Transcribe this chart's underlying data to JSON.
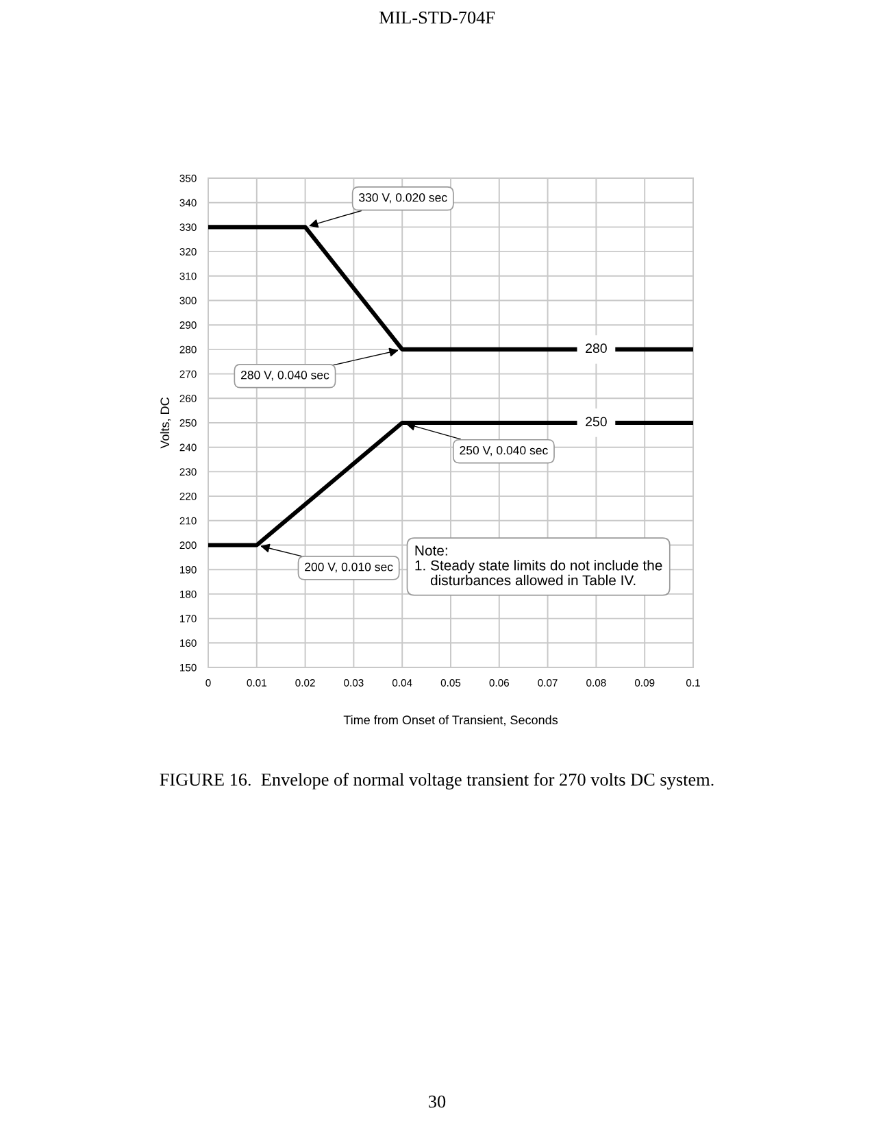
{
  "chart_data": {
    "type": "line",
    "title": "MIL-STD-704F",
    "xlabel": "Time from Onset of Transient, Seconds",
    "ylabel": "Volts, DC",
    "series": [
      {
        "color": "#000000",
        "x": [
          0,
          0.02,
          0.04,
          0.1
        ],
        "values": [
          330,
          330,
          280,
          280
        ]
      },
      {
        "color": "#000000",
        "x": [
          0,
          0.01,
          0.04,
          0.1
        ],
        "values": [
          200,
          200,
          250,
          250
        ]
      }
    ],
    "xlim": [
      0,
      0.1
    ],
    "ylim": [
      150,
      350
    ],
    "xticks": [
      0,
      0.01,
      0.02,
      0.03,
      0.04,
      0.05,
      0.06,
      0.07,
      0.08,
      0.09,
      0.1
    ],
    "yticks": [
      150,
      160,
      170,
      180,
      190,
      200,
      210,
      220,
      230,
      240,
      250,
      260,
      270,
      280,
      290,
      300,
      310,
      320,
      330,
      340,
      350
    ],
    "grid": true,
    "marker": "none",
    "line_style": "solid",
    "annotations": [
      {
        "text": "330 V, 0.020 sec",
        "x": 0.02,
        "y": 330
      },
      {
        "text": "280 V, 0.040 sec",
        "x": 0.04,
        "y": 280
      },
      {
        "text": "250 V, 0.040 sec",
        "x": 0.04,
        "y": 250
      },
      {
        "text": "200 V, 0.010 sec",
        "x": 0.01,
        "y": 200
      },
      {
        "text": "280",
        "x": 0.08,
        "y": 280
      },
      {
        "text": "250",
        "x": 0.08,
        "y": 250
      },
      "Note:\n1. Steady state limits do not include the\n    disturbances allowed in Table IV.",
      "FIGURE 16.  Envelope of normal voltage transient for 270 volts DC system.",
      "30"
    ]
  }
}
